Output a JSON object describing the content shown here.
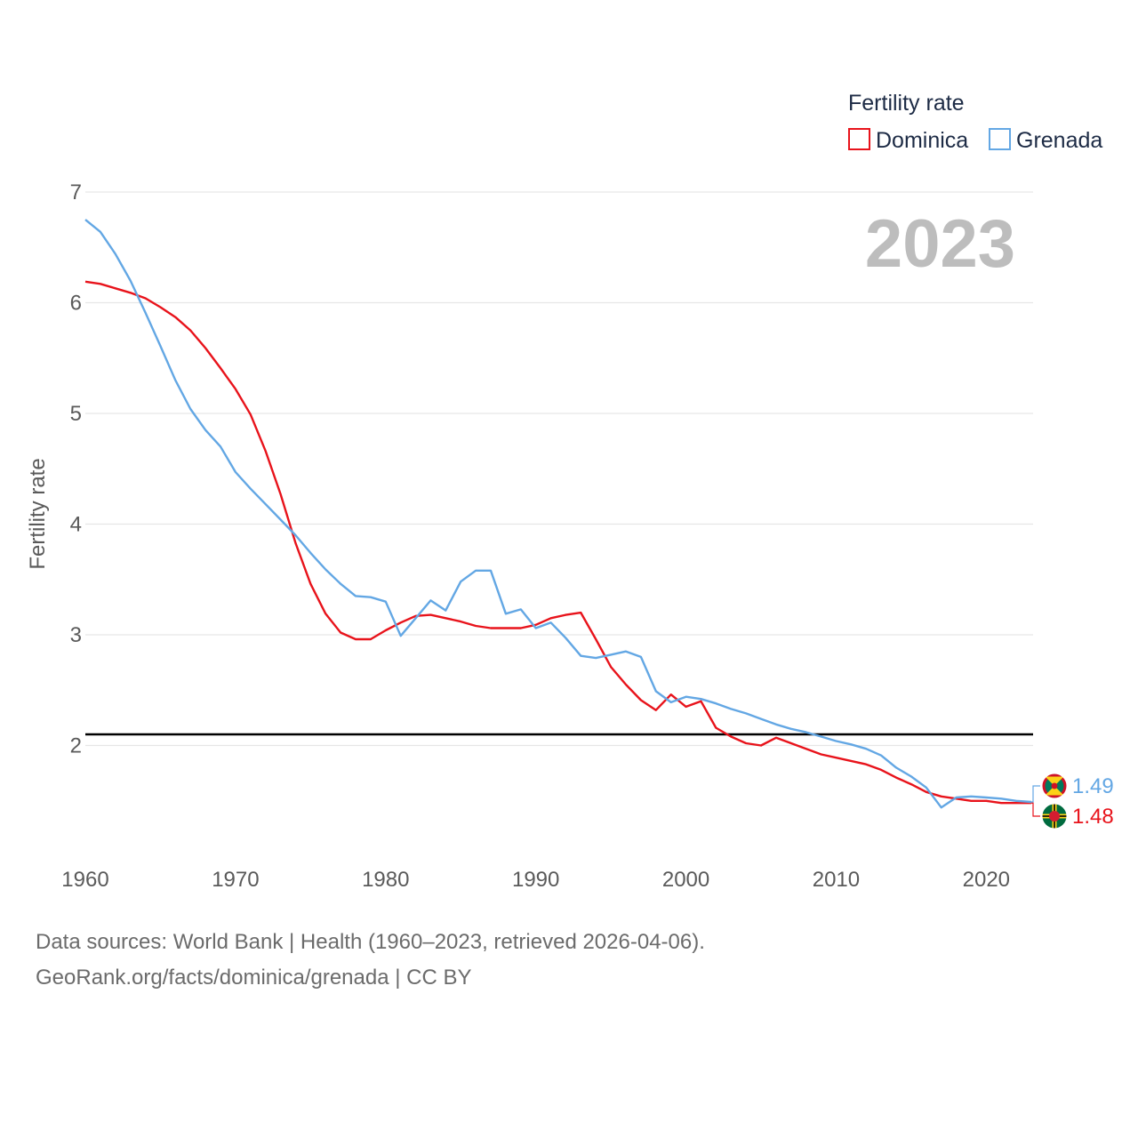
{
  "chart_data": {
    "type": "line",
    "year_label": "2023",
    "ylabel": "Fertility rate",
    "xlabel": "",
    "legend_title": "Fertility rate",
    "legend_position": "top-right",
    "xlim": [
      1960,
      2023
    ],
    "ylim": [
      1.3,
      7.0
    ],
    "yticks": [
      2,
      3,
      4,
      5,
      6,
      7
    ],
    "xticks": [
      1960,
      1970,
      1980,
      1990,
      2000,
      2010,
      2020
    ],
    "reference_line": 2.1,
    "x": [
      1960,
      1961,
      1962,
      1963,
      1964,
      1965,
      1966,
      1967,
      1968,
      1969,
      1970,
      1971,
      1972,
      1973,
      1974,
      1975,
      1976,
      1977,
      1978,
      1979,
      1980,
      1981,
      1982,
      1983,
      1984,
      1985,
      1986,
      1987,
      1988,
      1989,
      1990,
      1991,
      1992,
      1993,
      1994,
      1995,
      1996,
      1997,
      1998,
      1999,
      2000,
      2001,
      2002,
      2003,
      2004,
      2005,
      2006,
      2007,
      2008,
      2009,
      2010,
      2011,
      2012,
      2013,
      2014,
      2015,
      2016,
      2017,
      2018,
      2019,
      2020,
      2021,
      2022,
      2023
    ],
    "series": [
      {
        "name": "Dominica",
        "color": "#e8131b",
        "flag": "dominica-flag",
        "end_label": "1.48",
        "values": [
          6.19,
          6.17,
          6.13,
          6.09,
          6.04,
          5.96,
          5.87,
          5.75,
          5.59,
          5.41,
          5.22,
          4.99,
          4.66,
          4.27,
          3.83,
          3.46,
          3.19,
          3.02,
          2.96,
          2.96,
          3.04,
          3.11,
          3.17,
          3.18,
          3.15,
          3.12,
          3.08,
          3.06,
          3.06,
          3.06,
          3.09,
          3.15,
          3.18,
          3.2,
          2.96,
          2.71,
          2.55,
          2.41,
          2.32,
          2.46,
          2.35,
          2.4,
          2.16,
          2.08,
          2.02,
          2.0,
          2.07,
          2.02,
          1.97,
          1.92,
          1.89,
          1.86,
          1.83,
          1.78,
          1.71,
          1.65,
          1.58,
          1.54,
          1.52,
          1.5,
          1.5,
          1.48,
          1.48,
          1.48
        ]
      },
      {
        "name": "Grenada",
        "color": "#63a7e4",
        "flag": "grenada-flag",
        "end_label": "1.49",
        "values": [
          6.75,
          6.64,
          6.44,
          6.2,
          5.91,
          5.61,
          5.3,
          5.04,
          4.85,
          4.7,
          4.47,
          4.32,
          4.18,
          4.04,
          3.9,
          3.74,
          3.59,
          3.46,
          3.35,
          3.34,
          3.3,
          2.99,
          3.15,
          3.31,
          3.22,
          3.48,
          3.58,
          3.58,
          3.19,
          3.23,
          3.06,
          3.11,
          2.97,
          2.81,
          2.79,
          2.82,
          2.85,
          2.8,
          2.49,
          2.39,
          2.44,
          2.42,
          2.38,
          2.33,
          2.29,
          2.24,
          2.19,
          2.15,
          2.12,
          2.08,
          2.04,
          2.01,
          1.97,
          1.91,
          1.8,
          1.72,
          1.62,
          1.44,
          1.53,
          1.54,
          1.53,
          1.52,
          1.5,
          1.49
        ]
      }
    ]
  },
  "source": {
    "line1": "Data sources: World Bank | Health (1960–2023, retrieved 2026-04-06).",
    "line2": "GeoRank.org/facts/dominica/grenada | CC BY"
  }
}
